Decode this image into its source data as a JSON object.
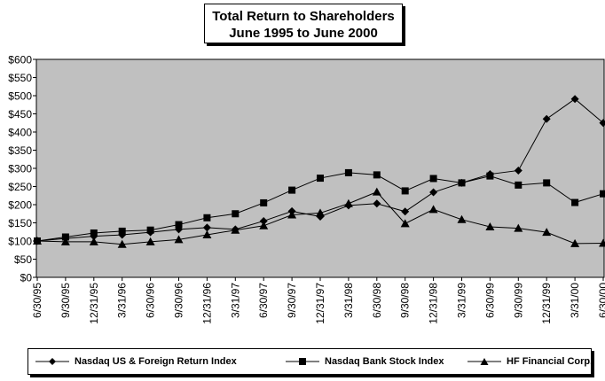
{
  "chart_data": {
    "type": "line",
    "title": "Total Return to Shareholders",
    "subtitle": "June 1995 to June 2000",
    "xlabel": "",
    "ylabel": "",
    "ylim": [
      0,
      600
    ],
    "y_ticks": [
      "$0",
      "$50",
      "$100",
      "$150",
      "$200",
      "$250",
      "$300",
      "$350",
      "$400",
      "$450",
      "$500",
      "$550",
      "$600"
    ],
    "categories": [
      "6/30/95",
      "9/30/95",
      "12/31/95",
      "3/31/96",
      "6/30/96",
      "9/30/96",
      "12/31/96",
      "3/31/97",
      "6/30/97",
      "9/30/97",
      "12/31/97",
      "3/31/98",
      "6/30/98",
      "9/30/98",
      "12/31/98",
      "3/31/99",
      "6/30/99",
      "9/30/99",
      "12/31/99",
      "3/31/00",
      "6/30/00"
    ],
    "grid": false,
    "legend_position": "bottom",
    "series": [
      {
        "name": "Nasdaq US & Foreign Return Index",
        "marker": "diamond",
        "values": [
          100,
          107,
          113,
          117,
          124,
          132,
          137,
          132,
          155,
          182,
          167,
          198,
          203,
          181,
          234,
          260,
          284,
          294,
          436,
          491,
          425
        ]
      },
      {
        "name": "Nasdaq Bank Stock Index",
        "marker": "square",
        "values": [
          100,
          111,
          122,
          127,
          130,
          145,
          164,
          175,
          205,
          240,
          273,
          288,
          282,
          238,
          272,
          260,
          279,
          254,
          260,
          206,
          230
        ]
      },
      {
        "name": "HF Financial Corp.",
        "marker": "triangle",
        "values": [
          100,
          98,
          98,
          91,
          98,
          104,
          117,
          130,
          142,
          172,
          177,
          203,
          235,
          148,
          187,
          159,
          139,
          135,
          124,
          93,
          94
        ]
      }
    ]
  }
}
